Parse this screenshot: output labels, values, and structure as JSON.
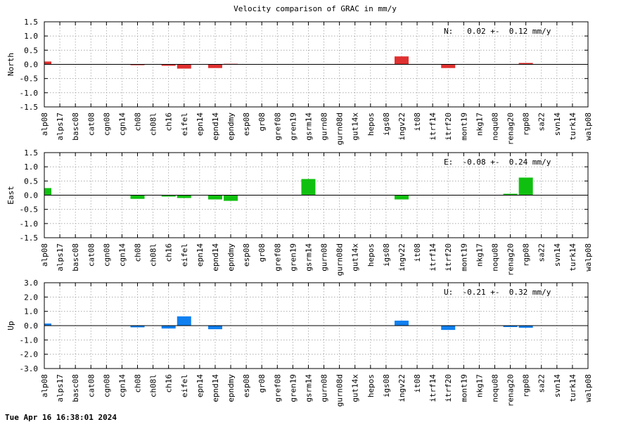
{
  "chart_data": {
    "type": "bar",
    "title": "Velocity comparison of GRAC in mm/y",
    "timestamp": "Tue Apr 16 16:38:01 2024",
    "categories": [
      "alp08",
      "alps17",
      "basc08",
      "cat08",
      "cgn08",
      "cgn14",
      "ch08",
      "ch08l",
      "ch16",
      "eifel",
      "epn14",
      "epnd14",
      "epndmy",
      "esp08",
      "gr08",
      "gref08",
      "gren19",
      "gsrm14",
      "gurn08",
      "gurn08d",
      "gut14x",
      "hepos",
      "igs08",
      "ingv22",
      "it08",
      "itrf14",
      "itrf20",
      "mont19",
      "nkg17",
      "noqu08",
      "renag20",
      "rgp08",
      "sa22",
      "svn14",
      "turk14",
      "walp08"
    ],
    "grid": true,
    "panels": [
      {
        "key": "north",
        "ylabel": "North",
        "color": "#e03030",
        "ylim": [
          -1.5,
          1.5
        ],
        "yticks": [
          "1.5",
          "1.0",
          "0.5",
          "0.0",
          "-0.5",
          "-1.0",
          "-1.5"
        ],
        "ytick_values": [
          1.5,
          1.0,
          0.5,
          0.0,
          -0.5,
          -1.0,
          -1.5
        ],
        "annotation": "N:   0.02 +-  0.12 mm/y",
        "values": [
          0.1,
          0,
          0,
          0,
          0,
          0,
          -0.03,
          0,
          -0.05,
          -0.15,
          0,
          -0.13,
          0.02,
          0,
          0,
          0,
          0,
          0,
          0,
          0,
          0,
          0,
          0,
          0.28,
          0,
          0,
          -0.13,
          0,
          0,
          0,
          0,
          0.05,
          0,
          0,
          0,
          0
        ]
      },
      {
        "key": "east",
        "ylabel": "East",
        "color": "#10c010",
        "ylim": [
          -1.5,
          1.5
        ],
        "yticks": [
          "1.5",
          "1.0",
          "0.5",
          "0.0",
          "-0.5",
          "-1.0",
          "-1.5"
        ],
        "ytick_values": [
          1.5,
          1.0,
          0.5,
          0.0,
          -0.5,
          -1.0,
          -1.5
        ],
        "annotation": "E:  -0.08 +-  0.24 mm/y",
        "values": [
          0.25,
          0,
          0,
          0,
          0,
          0,
          -0.13,
          0,
          -0.05,
          -0.1,
          0,
          -0.15,
          -0.2,
          0,
          0,
          0,
          0,
          0.57,
          0,
          0,
          0,
          0,
          0,
          -0.15,
          0,
          0,
          0,
          0,
          0,
          0,
          0.05,
          0.62,
          0,
          0,
          0,
          0
        ]
      },
      {
        "key": "up",
        "ylabel": "Up",
        "color": "#1080f0",
        "ylim": [
          -3.0,
          3.0
        ],
        "yticks": [
          "3.0",
          "2.0",
          "1.0",
          "0.0",
          "-1.0",
          "-2.0",
          "-3.0"
        ],
        "ytick_values": [
          3.0,
          2.0,
          1.0,
          0.0,
          -1.0,
          -2.0,
          -3.0
        ],
        "annotation": "U:  -0.21 +-  0.32 mm/y",
        "values": [
          0.15,
          0,
          0,
          0,
          0,
          0,
          -0.12,
          0,
          -0.2,
          0.65,
          0,
          -0.25,
          0,
          0,
          0,
          0,
          0,
          0,
          0,
          0,
          0,
          0,
          0,
          0.35,
          0,
          0,
          -0.3,
          0,
          0,
          0,
          -0.1,
          -0.15,
          0,
          0,
          0,
          0
        ]
      }
    ]
  }
}
